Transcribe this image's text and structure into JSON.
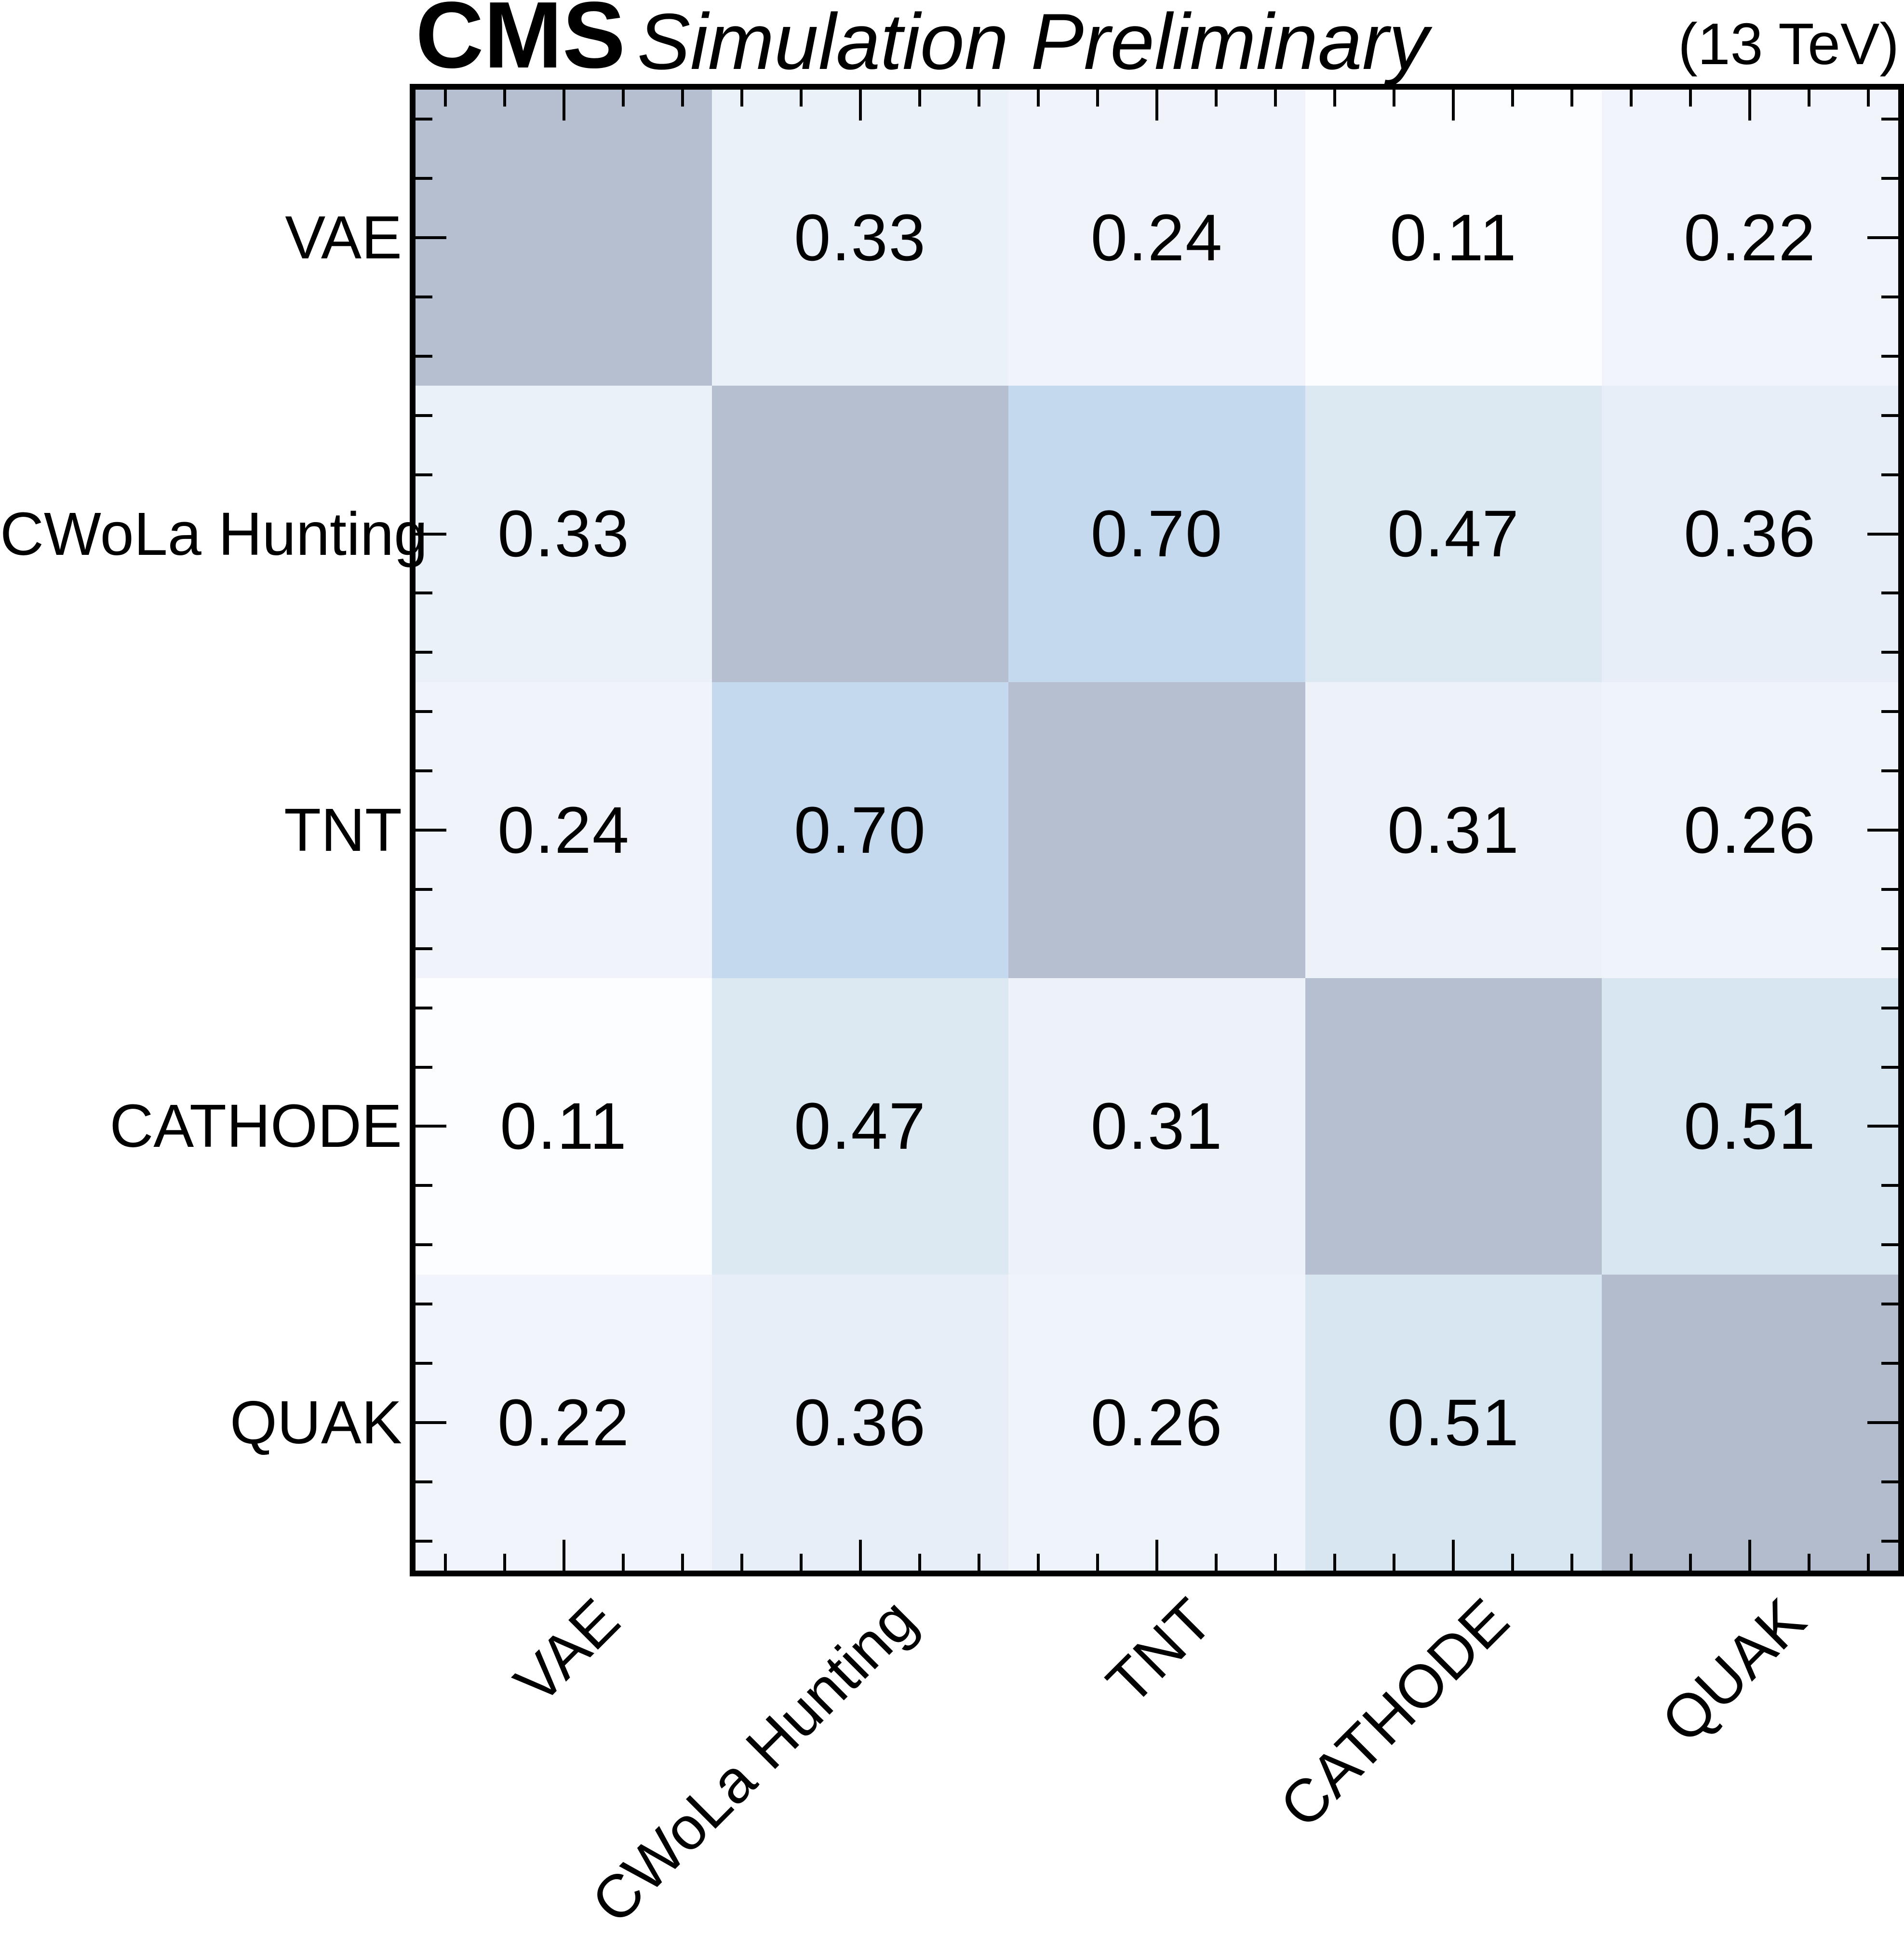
{
  "header": {
    "experiment": "CMS",
    "work_label": "Simulation Preliminary",
    "energy_label": "(13 TeV)"
  },
  "chart_data": {
    "type": "heatmap",
    "categories": [
      "VAE",
      "CWoLa Hunting",
      "TNT",
      "CATHODE",
      "QUAK"
    ],
    "matrix": [
      [
        null,
        0.33,
        0.24,
        0.11,
        0.22
      ],
      [
        0.33,
        null,
        0.7,
        0.47,
        0.36
      ],
      [
        0.24,
        0.7,
        null,
        0.31,
        0.26
      ],
      [
        0.11,
        0.47,
        0.31,
        null,
        0.51
      ],
      [
        0.22,
        0.36,
        0.26,
        0.51,
        null
      ]
    ],
    "cell_labels": [
      [
        "",
        "0.33",
        "0.24",
        "0.11",
        "0.22"
      ],
      [
        "0.33",
        "",
        "0.70",
        "0.47",
        "0.36"
      ],
      [
        "0.24",
        "0.70",
        "",
        "0.31",
        "0.26"
      ],
      [
        "0.11",
        "0.47",
        "0.31",
        "",
        "0.51"
      ],
      [
        "0.22",
        "0.36",
        "0.26",
        "0.51",
        ""
      ]
    ],
    "cell_colors": [
      [
        "#b5bfd0",
        "#eaf1f8",
        "#f0f4fa",
        "#fbfdff",
        "#f1f5fb"
      ],
      [
        "#eaf1f8",
        "#b5bfd0",
        "#c4d9ed",
        "#dce9f3",
        "#e7eef7"
      ],
      [
        "#f0f4fa",
        "#c4d9ed",
        "#b5bfd0",
        "#edf2f9",
        "#eff3fa"
      ],
      [
        "#fbfdff",
        "#dce9f3",
        "#edf2f9",
        "#b5bfd0",
        "#d8e6f2"
      ],
      [
        "#f1f5fb",
        "#e7eef7",
        "#eff3fa",
        "#d8e6f2",
        "#b2bccd"
      ]
    ],
    "value_text_color": "#000000",
    "layout": {
      "grid": false,
      "legend": false,
      "x_tick_label_rotation_deg": 45,
      "ticks_inward": true,
      "tick_fractions_per_cell": [
        0.1,
        0.3,
        0.5,
        0.7,
        0.9
      ],
      "major_tick_fraction": 0.5
    }
  }
}
